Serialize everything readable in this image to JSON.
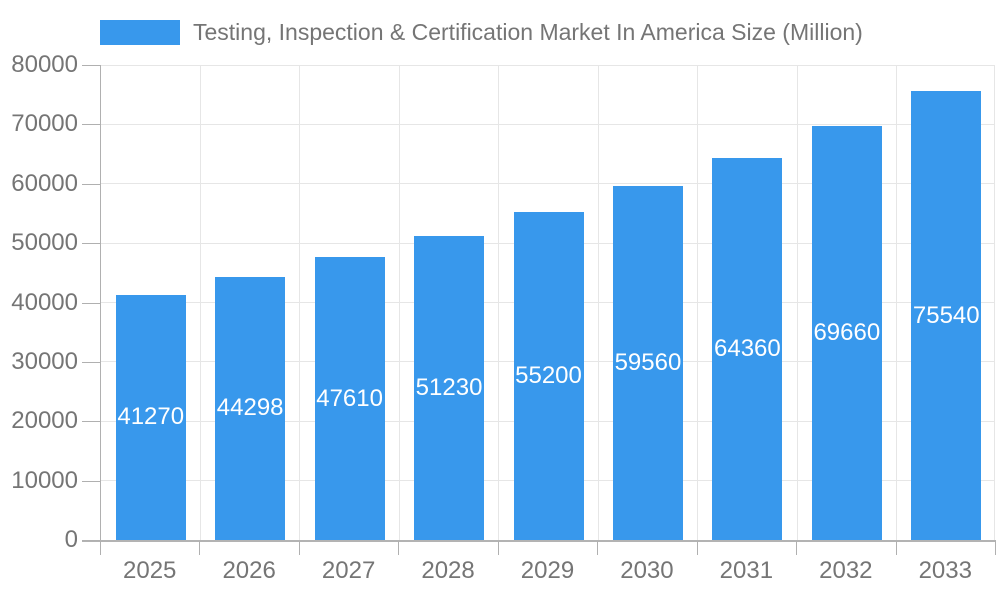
{
  "legend": {
    "label": "Testing, Inspection & Certification Market In America Size (Million)"
  },
  "chart_data": {
    "type": "bar",
    "title": "Testing, Inspection & Certification Market In America Size (Million)",
    "categories": [
      "2025",
      "2026",
      "2027",
      "2028",
      "2029",
      "2030",
      "2031",
      "2032",
      "2033"
    ],
    "series": [
      {
        "name": "Testing, Inspection & Certification Market In America Size (Million)",
        "values": [
          41270,
          44298,
          47610,
          51230,
          55200,
          59560,
          64360,
          69660,
          75540
        ]
      }
    ],
    "value_labels": [
      "41270",
      "44298",
      "47610",
      "51230",
      "55200",
      "59560",
      "64360",
      "69660",
      "75540"
    ],
    "xlabel": "",
    "ylabel": "",
    "ylim": [
      0,
      80000
    ],
    "yticks": [
      0,
      10000,
      20000,
      30000,
      40000,
      50000,
      60000,
      70000,
      80000
    ],
    "grid": true,
    "legend_position": "top-left",
    "colors": {
      "bar": "#3898ec",
      "bar_label": "#ffffff",
      "grid": "#e6e6e6",
      "axis": "#b0b0b0",
      "axis_bottom": "#b3b3b3",
      "text": "#757575"
    }
  }
}
